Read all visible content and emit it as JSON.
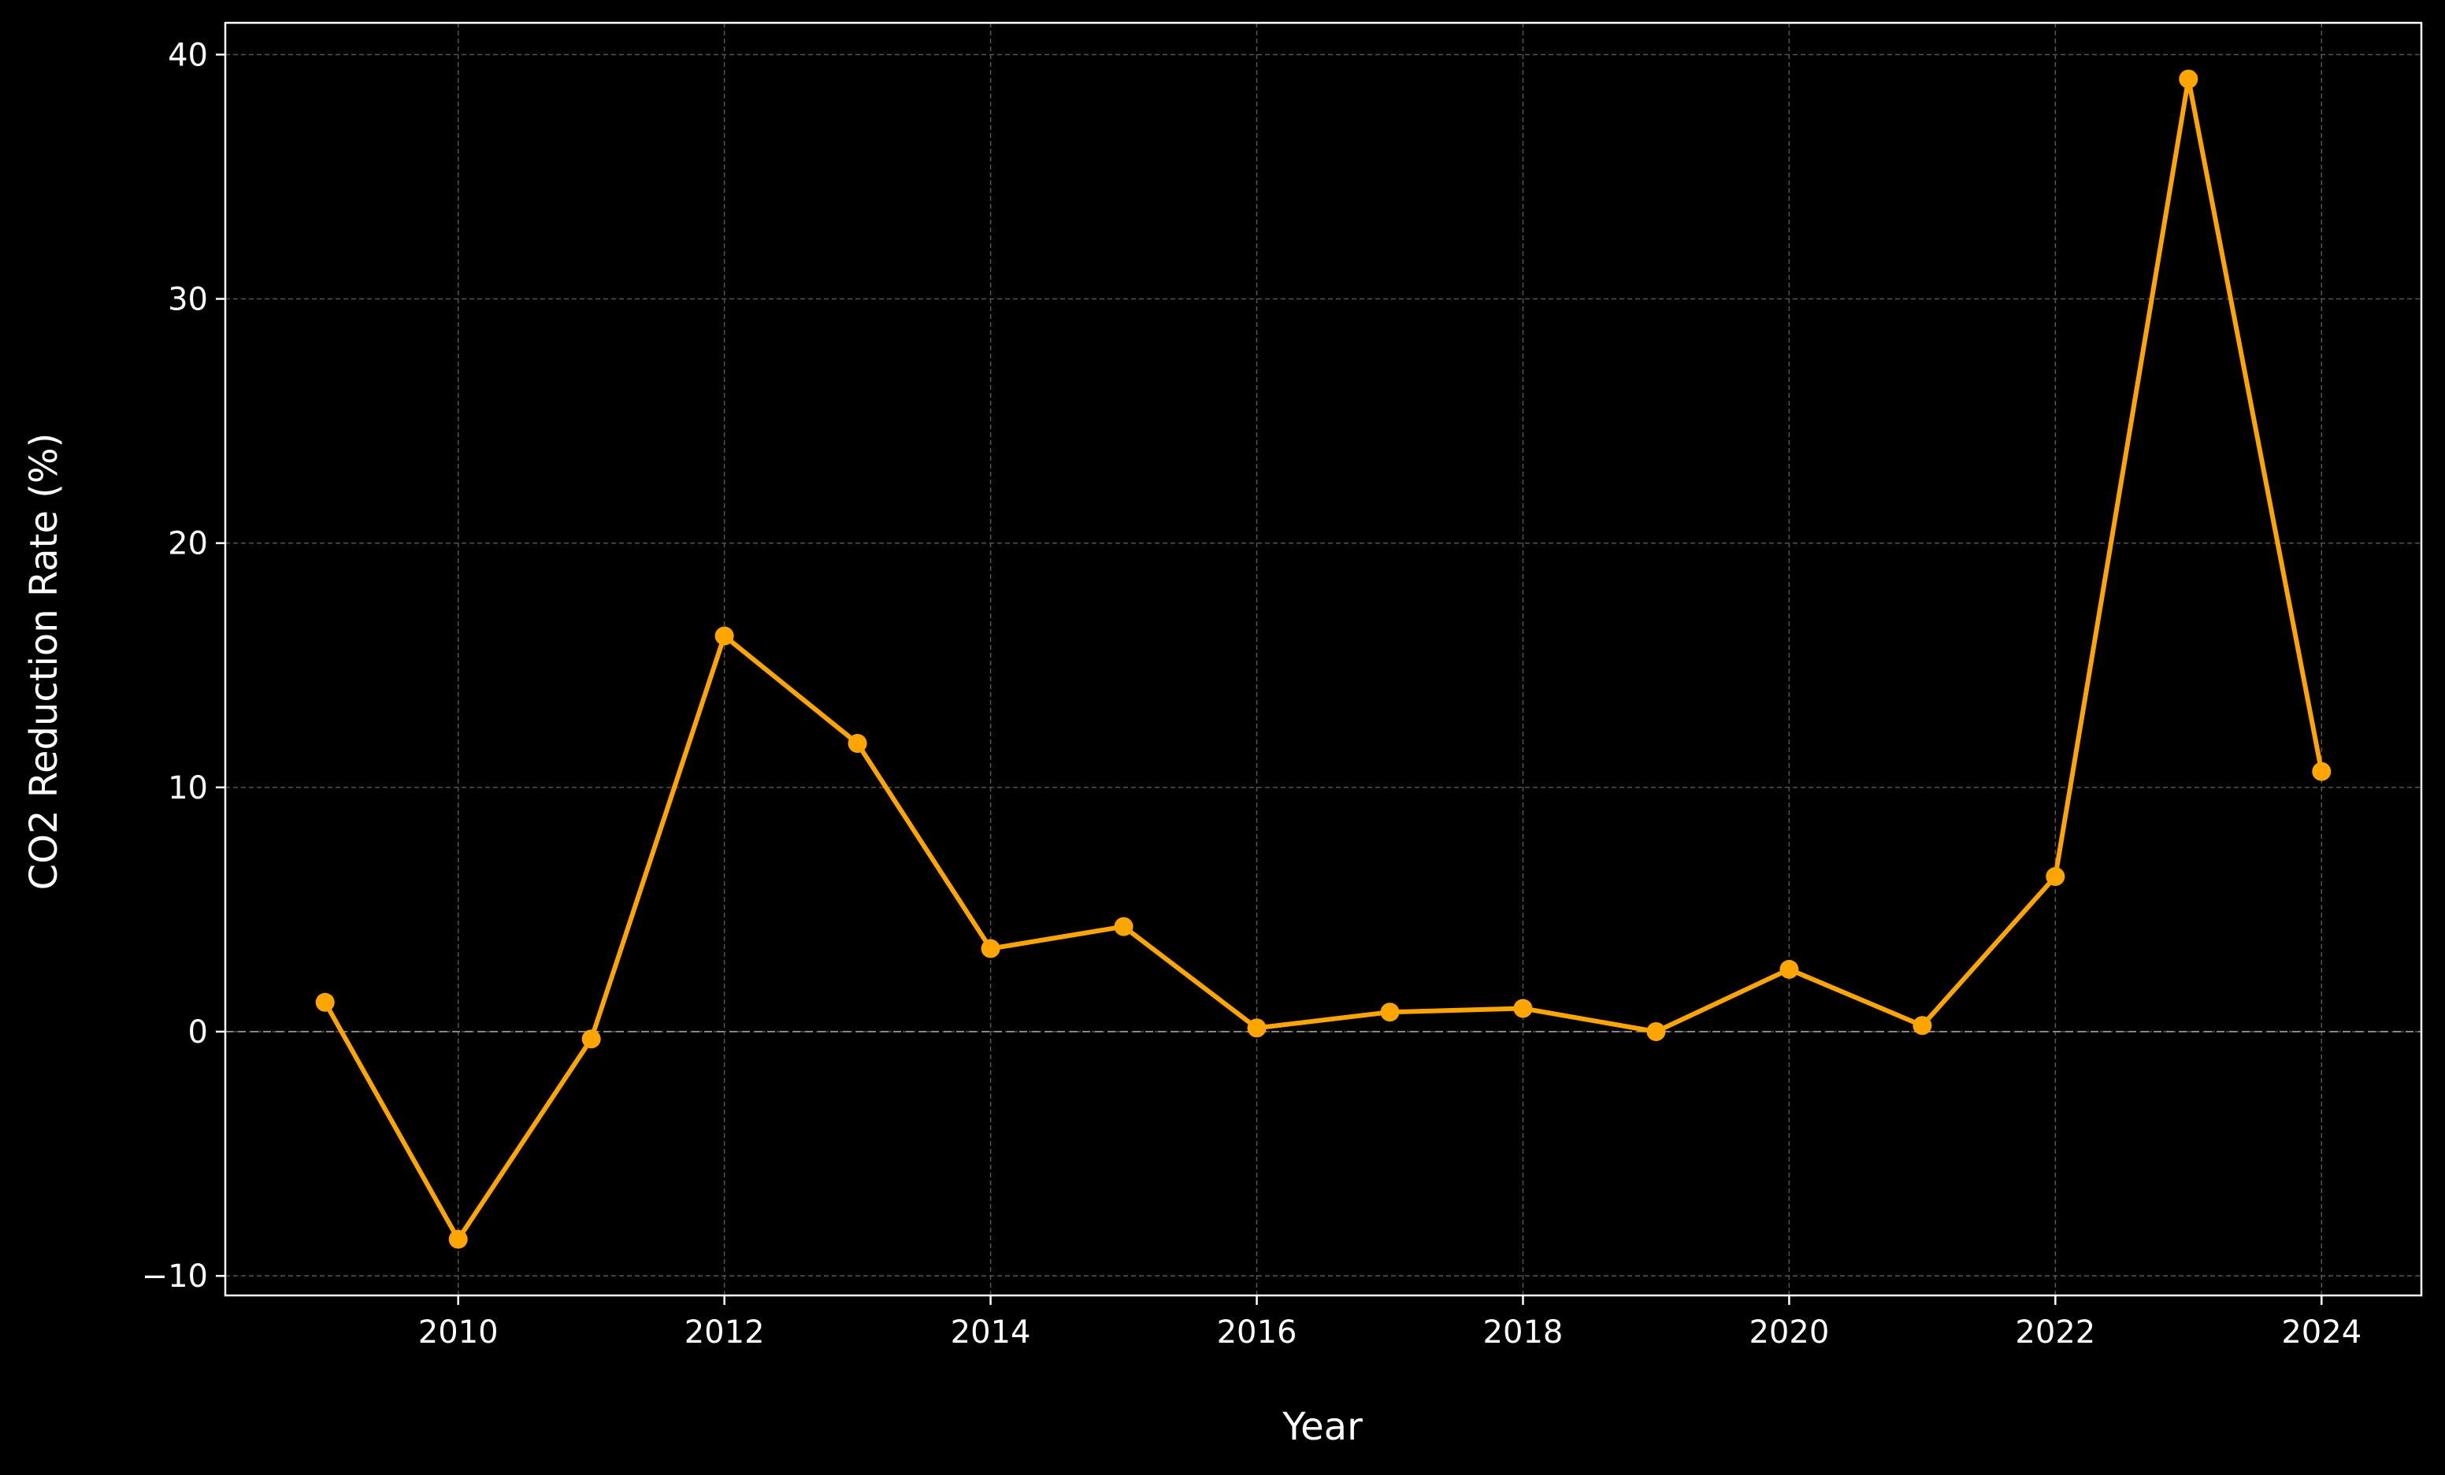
{
  "chart_data": {
    "type": "line",
    "title": "",
    "xlabel": "Year",
    "ylabel": "CO2 Reduction Rate (%)",
    "x": [
      2009,
      2010,
      2011,
      2012,
      2013,
      2014,
      2015,
      2016,
      2017,
      2018,
      2019,
      2020,
      2021,
      2022,
      2023,
      2024
    ],
    "series": [
      {
        "values": [
          1.2,
          -8.5,
          -0.3,
          16.2,
          11.8,
          3.4,
          4.3,
          0.15,
          0.8,
          0.95,
          0.0,
          2.55,
          0.25,
          6.35,
          39.0,
          10.65
        ],
        "color": "#ffa500",
        "marker": "circle"
      }
    ],
    "xticks": [
      "2010",
      "2012",
      "2014",
      "2016",
      "2018",
      "2020",
      "2022",
      "2024"
    ],
    "yticks": [
      "−10",
      "0",
      "10",
      "20",
      "30",
      "40"
    ],
    "xlim": [
      2008.25,
      2024.75
    ],
    "ylim": [
      -10.8,
      41.3
    ],
    "grid": true,
    "zero_line": true,
    "legend": false,
    "colors": {
      "background": "#000000",
      "axes": "#ffffff",
      "grid": "#555555",
      "zero_line": "#888888",
      "line": "#ffa500"
    }
  }
}
